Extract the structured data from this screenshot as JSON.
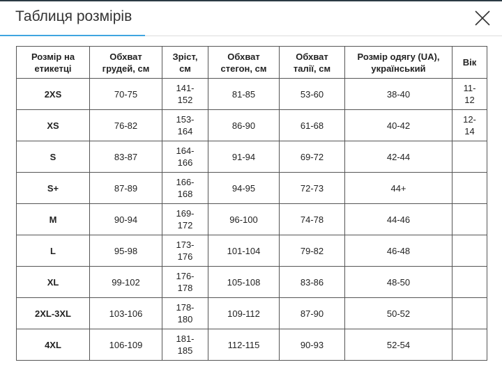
{
  "header": {
    "title": "Таблиця розмірів"
  },
  "table": {
    "headers": [
      "Розмір на етикетці",
      "Обхват грудей, см",
      "Зріст, см",
      "Обхват стегон, см",
      "Обхват талії, см",
      "Розмір одягу (UA), український",
      "Вік"
    ],
    "rows": [
      [
        "2XS",
        "70-75",
        "141-152",
        "81-85",
        "53-60",
        "38-40",
        "11-12"
      ],
      [
        "XS",
        "76-82",
        "153-164",
        "86-90",
        "61-68",
        "40-42",
        "12-14"
      ],
      [
        "S",
        "83-87",
        "164-166",
        "91-94",
        "69-72",
        "42-44"
      ],
      [
        "S+",
        "87-89",
        "166-168",
        "94-95",
        "72-73",
        "44+"
      ],
      [
        "M",
        "90-94",
        "169-172",
        "96-100",
        "74-78",
        "44-46"
      ],
      [
        "L",
        "95-98",
        "173-176",
        "101-104",
        "79-82",
        "46-48"
      ],
      [
        "XL",
        "99-102",
        "176-178",
        "105-108",
        "83-86",
        "48-50"
      ],
      [
        "2XL-3XL",
        "103-106",
        "178-180",
        "109-112",
        "87-90",
        "50-52"
      ],
      [
        "4XL",
        "106-109",
        "181-185",
        "112-115",
        "90-93",
        "52-54"
      ]
    ]
  }
}
